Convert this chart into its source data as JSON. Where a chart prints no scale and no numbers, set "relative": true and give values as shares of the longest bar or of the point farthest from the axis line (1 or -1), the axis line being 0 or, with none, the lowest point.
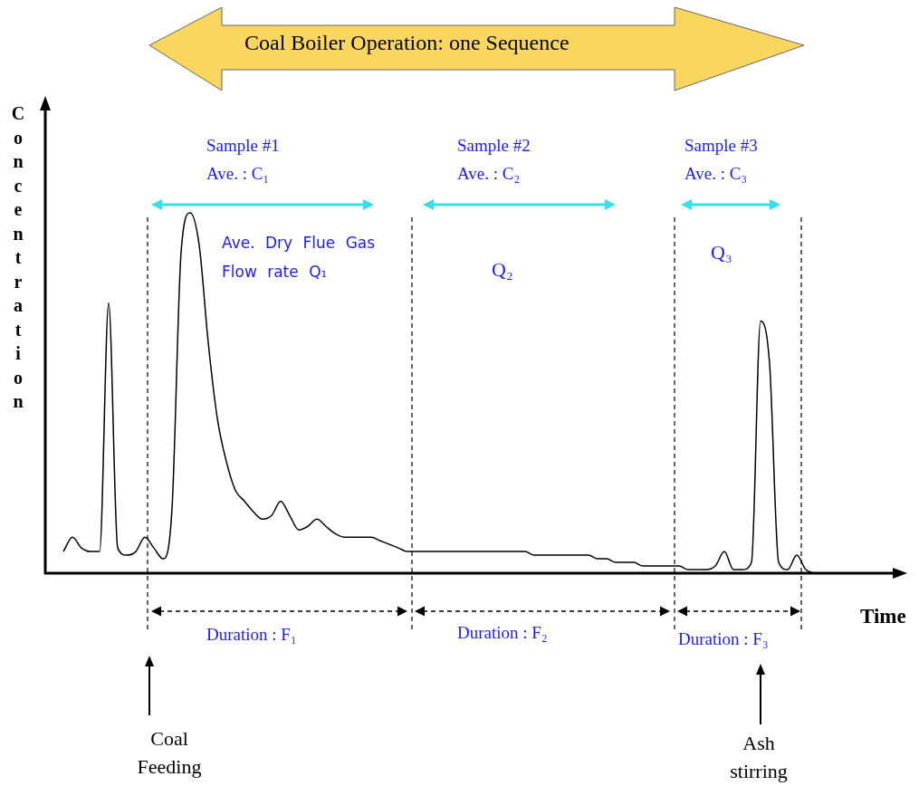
{
  "chart_data": {
    "type": "line",
    "relative": true,
    "title": "Coal Boiler Operation: one Sequence",
    "xlabel": "Time",
    "ylabel": "Concentration",
    "marker": "none",
    "categories": [
      null,
      null,
      null,
      null,
      null,
      null,
      null,
      null,
      null,
      null,
      null,
      null,
      null,
      null,
      null,
      null,
      null,
      null,
      null,
      null,
      null,
      null,
      null,
      null,
      null,
      null,
      null,
      null,
      null,
      null,
      null,
      null,
      null,
      null,
      null,
      null,
      null,
      null,
      null,
      null,
      null,
      null,
      null,
      null,
      null,
      null,
      null,
      null,
      null,
      null,
      null,
      null,
      null,
      null,
      null,
      null,
      null,
      null,
      null,
      null,
      null,
      null,
      null,
      null,
      null,
      null,
      null,
      null,
      null,
      null,
      null,
      null,
      null,
      null,
      null,
      null,
      null,
      null,
      null,
      null,
      null,
      null,
      null,
      null,
      null,
      null,
      null,
      null,
      null,
      null,
      null,
      null,
      null,
      null,
      null,
      null
    ],
    "series": [
      {
        "color": "#000000",
        "values": [
          null,
          null,
          0.06,
          0.1,
          0.07,
          0.06,
          0.06,
          0.75,
          0.07,
          0.05,
          0.06,
          0.1,
          0.07,
          0.04,
          0.18,
          0.89,
          1.0,
          0.91,
          0.64,
          0.43,
          0.31,
          0.23,
          0.2,
          0.17,
          0.15,
          0.16,
          0.2,
          0.16,
          0.12,
          0.13,
          0.15,
          0.13,
          0.11,
          0.1,
          0.1,
          0.1,
          0.1,
          0.09,
          0.08,
          0.07,
          0.06,
          0.06,
          0.06,
          0.06,
          0.06,
          0.06,
          0.06,
          0.06,
          0.06,
          0.06,
          0.06,
          0.06,
          0.06,
          0.06,
          0.05,
          0.05,
          0.05,
          0.05,
          0.05,
          0.05,
          0.05,
          0.04,
          0.04,
          0.03,
          0.03,
          0.03,
          0.02,
          0.02,
          0.02,
          0.02,
          0.02,
          0.01,
          0.01,
          0.01,
          0.02,
          0.06,
          0.01,
          0.01,
          0.03,
          0.7,
          0.58,
          0.03,
          0.01,
          0.05,
          0.01,
          0,
          null,
          null,
          null,
          null,
          null,
          null,
          null,
          null,
          null,
          null
        ]
      }
    ],
    "annotations": [
      "Sample #1",
      "Ave. : C₁",
      "Ave. Dry Flue Gas Flow rate Q₁",
      "Sample #2",
      "Ave. : C₂",
      "Q₂",
      "Sample #3",
      "Ave. : C₃",
      "Q₃",
      "Duration : F₁",
      "Duration : F₂",
      "Duration : F₃",
      "Coal Feeding",
      "Ash stirring"
    ]
  }
}
